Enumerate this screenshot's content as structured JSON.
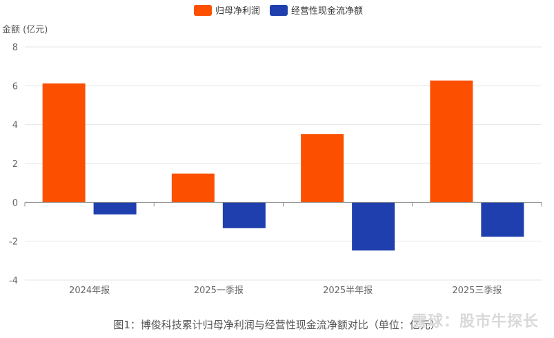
{
  "chart_data": {
    "type": "bar",
    "categories": [
      "2024年报",
      "2025一季报",
      "2025半年报",
      "2025三季报"
    ],
    "series": [
      {
        "name": "归母净利润",
        "color": "#fc5000",
        "values": [
          6.12,
          1.48,
          3.52,
          6.27
        ]
      },
      {
        "name": "经营性现金流净额",
        "color": "#1e3fad",
        "values": [
          -0.62,
          -1.33,
          -2.48,
          -1.77
        ]
      }
    ],
    "ylabel": "金额 (亿元)",
    "ylim": [
      -4,
      8
    ],
    "yticks": [
      -4,
      -2,
      0,
      2,
      4,
      6,
      8
    ],
    "grid": true,
    "legend": "top-center"
  },
  "caption": "图1：博俊科技累计归母净利润与经营性现金流净额对比（单位：亿元）",
  "watermark": "雪球：股市牛探长"
}
